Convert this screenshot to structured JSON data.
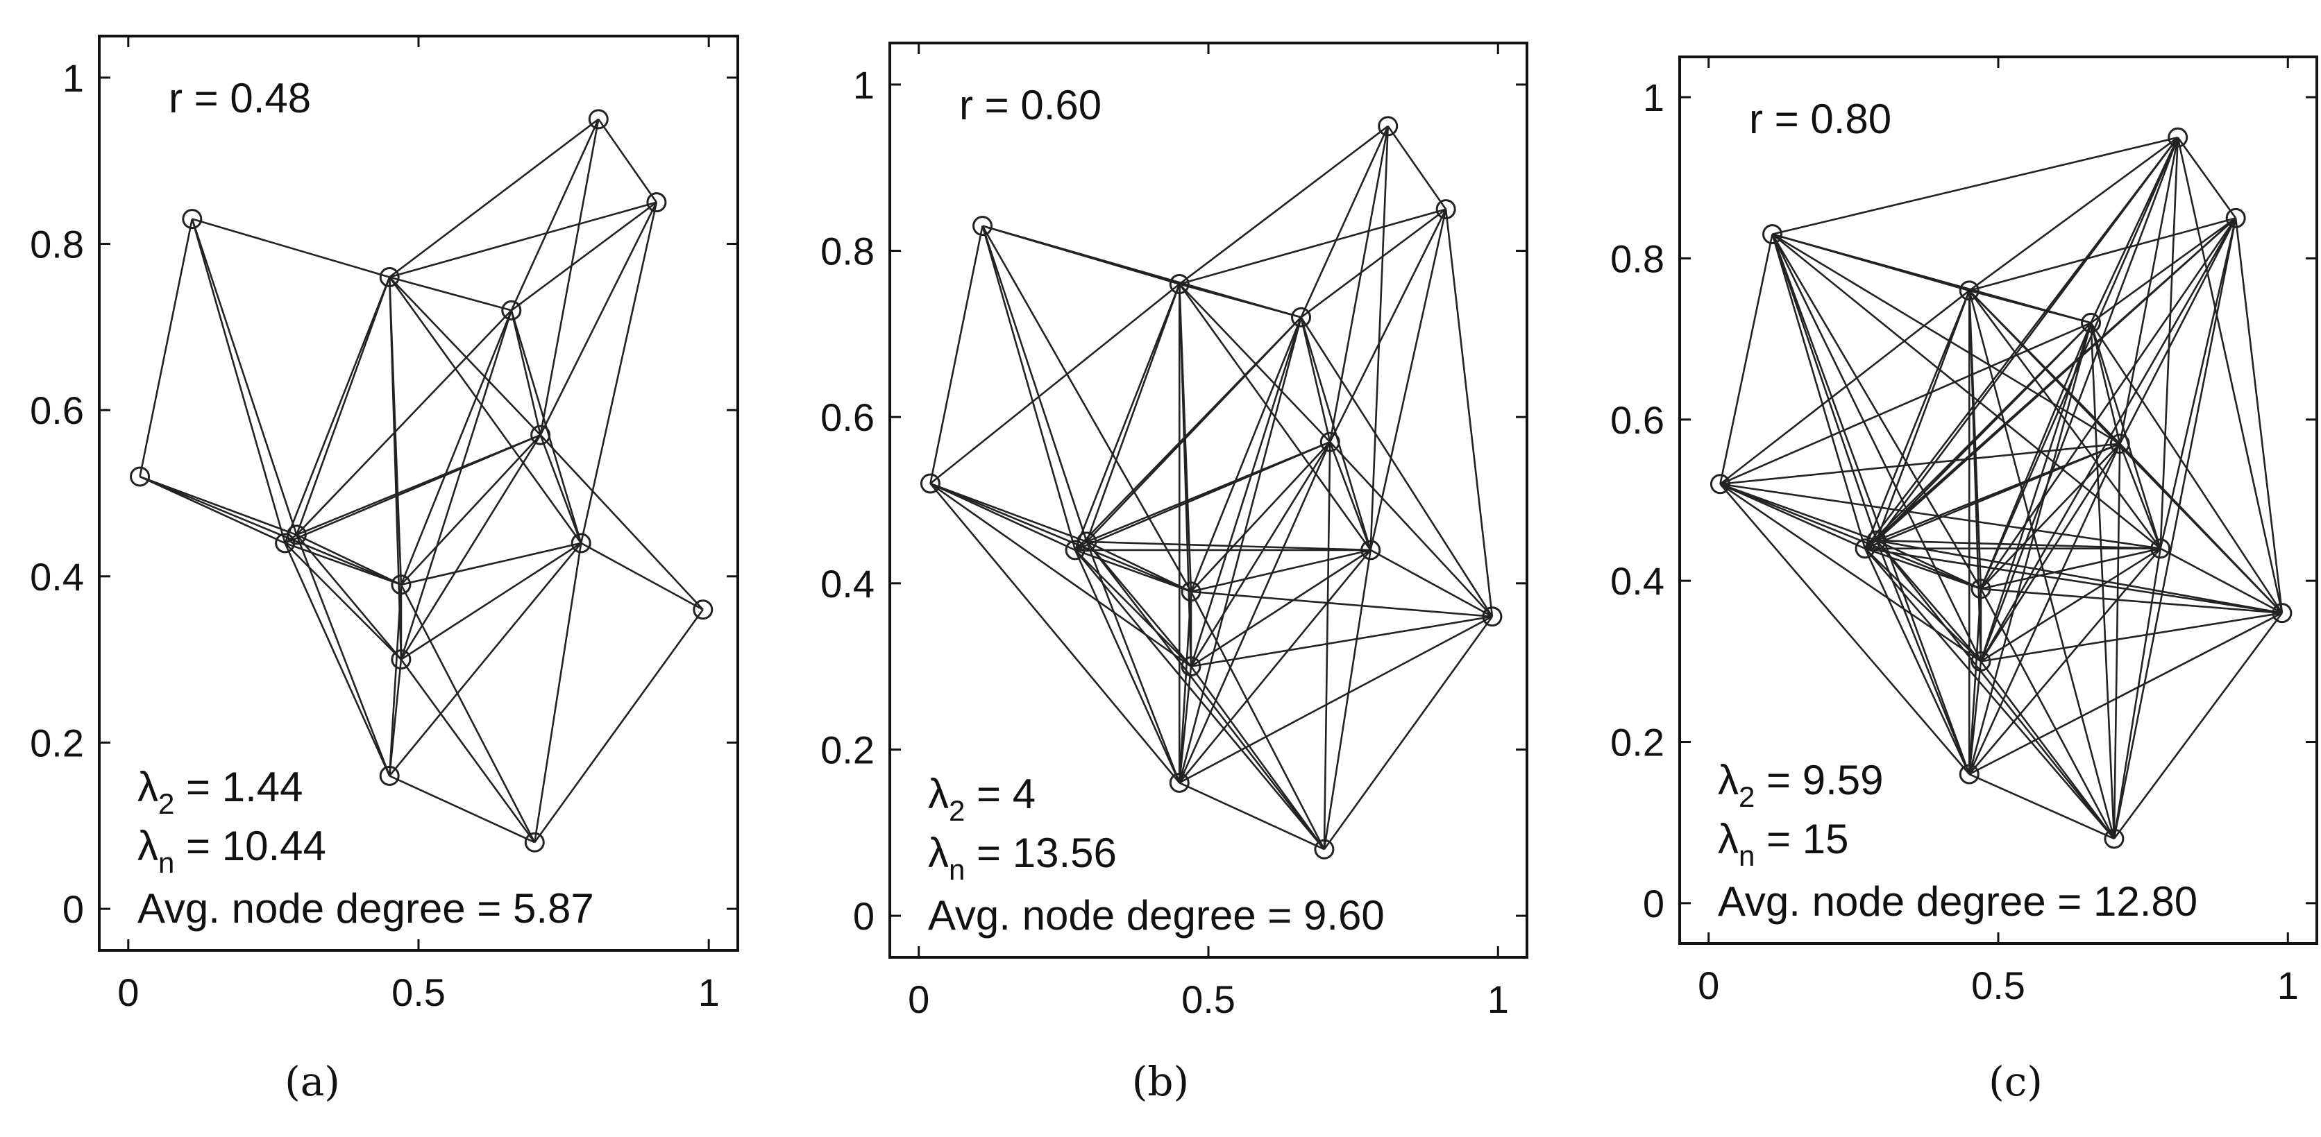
{
  "figure": {
    "captions": [
      "(a)",
      "(b)",
      "(c)"
    ]
  },
  "chart_data": [
    {
      "type": "scatter",
      "panel": "(a)",
      "title": "",
      "xlabel": "",
      "ylabel": "",
      "xlim": [
        -0.05,
        1.05
      ],
      "ylim": [
        -0.05,
        1.05
      ],
      "xticks": [
        "0",
        "0.5",
        "1"
      ],
      "yticks": [
        "0",
        "0.2",
        "0.4",
        "0.6",
        "0.8",
        "1"
      ],
      "grid": false,
      "annotations": {
        "radius": "r = 0.48",
        "lambda2_symbol": "λ",
        "lambda2_sub": "2",
        "lambda2_value": " = 1.44",
        "lambdan_symbol": "λ",
        "lambdan_sub": "n",
        "lambdan_value": " = 10.44",
        "avg_degree": "Avg. node degree = 5.87"
      },
      "radius_value": 0.48,
      "nodes": [
        [
          0.02,
          0.52
        ],
        [
          0.11,
          0.83
        ],
        [
          0.27,
          0.44
        ],
        [
          0.29,
          0.45
        ],
        [
          0.45,
          0.76
        ],
        [
          0.45,
          0.16
        ],
        [
          0.47,
          0.39
        ],
        [
          0.47,
          0.3
        ],
        [
          0.66,
          0.72
        ],
        [
          0.71,
          0.57
        ],
        [
          0.7,
          0.08
        ],
        [
          0.78,
          0.44
        ],
        [
          0.81,
          0.95
        ],
        [
          0.91,
          0.85
        ],
        [
          0.99,
          0.36
        ]
      ]
    },
    {
      "type": "scatter",
      "panel": "(b)",
      "title": "",
      "xlabel": "",
      "ylabel": "",
      "xlim": [
        -0.05,
        1.05
      ],
      "ylim": [
        -0.05,
        1.05
      ],
      "xticks": [
        "0",
        "0.5",
        "1"
      ],
      "yticks": [
        "0",
        "0.2",
        "0.4",
        "0.6",
        "0.8",
        "1"
      ],
      "grid": false,
      "annotations": {
        "radius": "r = 0.60",
        "lambda2_symbol": "λ",
        "lambda2_sub": "2",
        "lambda2_value": " = 4",
        "lambdan_symbol": "λ",
        "lambdan_sub": "n",
        "lambdan_value": " = 13.56",
        "avg_degree": "Avg. node degree = 9.60"
      },
      "radius_value": 0.6,
      "nodes": [
        [
          0.02,
          0.52
        ],
        [
          0.11,
          0.83
        ],
        [
          0.27,
          0.44
        ],
        [
          0.29,
          0.45
        ],
        [
          0.45,
          0.76
        ],
        [
          0.45,
          0.16
        ],
        [
          0.47,
          0.39
        ],
        [
          0.47,
          0.3
        ],
        [
          0.66,
          0.72
        ],
        [
          0.71,
          0.57
        ],
        [
          0.7,
          0.08
        ],
        [
          0.78,
          0.44
        ],
        [
          0.81,
          0.95
        ],
        [
          0.91,
          0.85
        ],
        [
          0.99,
          0.36
        ]
      ]
    },
    {
      "type": "scatter",
      "panel": "(c)",
      "title": "",
      "xlabel": "",
      "ylabel": "",
      "xlim": [
        -0.05,
        1.05
      ],
      "ylim": [
        -0.05,
        1.05
      ],
      "xticks": [
        "0",
        "0.5",
        "1"
      ],
      "yticks": [
        "0",
        "0.2",
        "0.4",
        "0.6",
        "0.8",
        "1"
      ],
      "grid": false,
      "annotations": {
        "radius": "r = 0.80",
        "lambda2_symbol": "λ",
        "lambda2_sub": "2",
        "lambda2_value": " = 9.59",
        "lambdan_symbol": "λ",
        "lambdan_sub": "n",
        "lambdan_value": " = 15",
        "avg_degree": "Avg. node degree = 12.80"
      },
      "radius_value": 0.8,
      "nodes": [
        [
          0.02,
          0.52
        ],
        [
          0.11,
          0.83
        ],
        [
          0.27,
          0.44
        ],
        [
          0.29,
          0.45
        ],
        [
          0.45,
          0.76
        ],
        [
          0.45,
          0.16
        ],
        [
          0.47,
          0.39
        ],
        [
          0.47,
          0.3
        ],
        [
          0.66,
          0.72
        ],
        [
          0.71,
          0.57
        ],
        [
          0.7,
          0.08
        ],
        [
          0.78,
          0.44
        ],
        [
          0.81,
          0.95
        ],
        [
          0.91,
          0.85
        ],
        [
          0.99,
          0.36
        ]
      ]
    }
  ]
}
